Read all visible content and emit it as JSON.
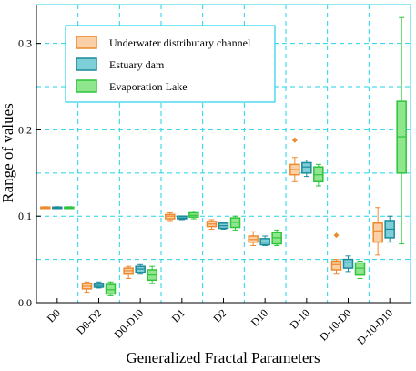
{
  "chart_data": {
    "type": "box",
    "x_label": "Generalized Fractal Parameters",
    "y_label": "Range of values",
    "categories": [
      "D0",
      "D0-D2",
      "D0-D10",
      "D1",
      "D2",
      "D10",
      "D-10",
      "D-10-D0",
      "D-10-D10"
    ],
    "ylim": [
      0,
      0.345
    ],
    "yticks": [
      {
        "value": 0,
        "label": "0.0"
      },
      0.1,
      0.2,
      0.3
    ],
    "y_minor_grid": [
      0.05,
      0.15,
      0.25
    ],
    "grid": true,
    "legend": "top-left",
    "series": [
      {
        "name": "Underwater distributary channel",
        "color": "#ec8a2e",
        "fill_color": "#fcd0a6",
        "values": [
          [
            0.109,
            0.1095,
            0.11,
            0.1105,
            0.111
          ],
          [
            0.012,
            0.016,
            0.019,
            0.022,
            0.024
          ],
          [
            0.028,
            0.033,
            0.037,
            0.04,
            0.042
          ],
          [
            0.095,
            0.097,
            0.1,
            0.102,
            0.104
          ],
          [
            0.085,
            0.088,
            0.091,
            0.094,
            0.096
          ],
          [
            0.066,
            0.07,
            0.073,
            0.077,
            0.082
          ],
          [
            0.14,
            0.148,
            0.154,
            0.16,
            0.168
          ],
          [
            0.033,
            0.038,
            0.044,
            0.048,
            0.05
          ],
          [
            0.055,
            0.07,
            0.083,
            0.092,
            0.11
          ]
        ],
        "outliers": [
          [],
          [],
          [],
          [],
          [],
          [],
          [
            0.188
          ],
          [
            0.078
          ],
          []
        ]
      },
      {
        "name": "Estuary dam",
        "color": "#1b8a9a",
        "fill_color": "#7ecfd8",
        "values": [
          [
            0.109,
            0.1095,
            0.11,
            0.1105,
            0.111
          ],
          [
            0.017,
            0.018,
            0.02,
            0.022,
            0.024
          ],
          [
            0.033,
            0.035,
            0.039,
            0.042,
            0.044
          ],
          [
            0.096,
            0.097,
            0.098,
            0.1,
            0.1
          ],
          [
            0.085,
            0.086,
            0.089,
            0.092,
            0.093
          ],
          [
            0.066,
            0.067,
            0.07,
            0.074,
            0.077
          ],
          [
            0.146,
            0.15,
            0.157,
            0.162,
            0.165
          ],
          [
            0.036,
            0.04,
            0.046,
            0.05,
            0.054
          ],
          [
            0.07,
            0.075,
            0.085,
            0.095,
            0.1
          ]
        ],
        "outliers": [
          [],
          [],
          [],
          [],
          [],
          [],
          [],
          [],
          []
        ]
      },
      {
        "name": "Evaporation Lake",
        "color": "#2ec43c",
        "fill_color": "#90e68c",
        "values": [
          [
            0.109,
            0.1095,
            0.11,
            0.1105,
            0.111
          ],
          [
            0.008,
            0.01,
            0.015,
            0.021,
            0.024
          ],
          [
            0.022,
            0.026,
            0.032,
            0.038,
            0.042
          ],
          [
            0.097,
            0.099,
            0.101,
            0.104,
            0.106
          ],
          [
            0.084,
            0.087,
            0.093,
            0.098,
            0.1
          ],
          [
            0.066,
            0.068,
            0.075,
            0.081,
            0.084
          ],
          [
            0.135,
            0.14,
            0.148,
            0.157,
            0.16
          ],
          [
            0.028,
            0.032,
            0.04,
            0.046,
            0.048
          ],
          [
            0.068,
            0.15,
            0.192,
            0.233,
            0.33
          ]
        ],
        "outliers": [
          [],
          [],
          [],
          [],
          [],
          [],
          [],
          [],
          []
        ]
      }
    ]
  }
}
